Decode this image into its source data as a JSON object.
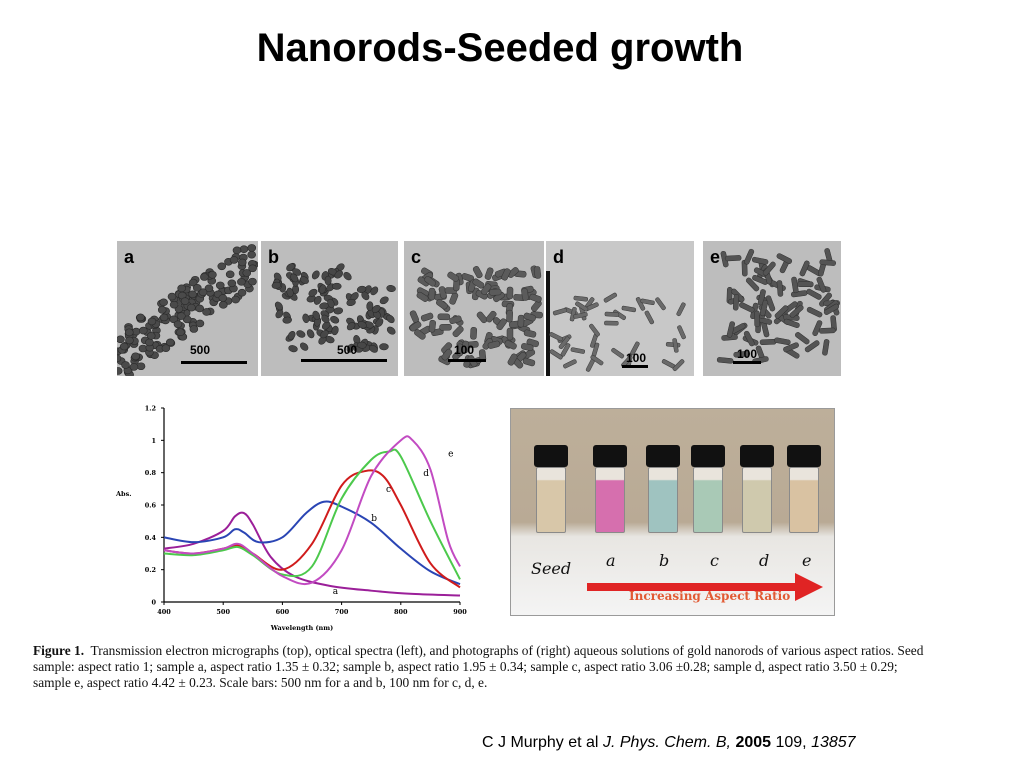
{
  "title": "Nanorods-Seeded growth",
  "tem_panels": [
    {
      "letter": "a",
      "scale": "500"
    },
    {
      "letter": "b",
      "scale": "500"
    },
    {
      "letter": "c",
      "scale": "100"
    },
    {
      "letter": "d",
      "scale": "100"
    },
    {
      "letter": "e",
      "scale": "100"
    }
  ],
  "chart_data": {
    "type": "line",
    "title": "",
    "xlabel": "Wavelength (nm)",
    "ylabel": "Abs.",
    "xlim": [
      400,
      900
    ],
    "ylim": [
      0,
      1.2
    ],
    "x_ticks": [
      "400",
      "500",
      "600",
      "700",
      "800",
      "900"
    ],
    "y_ticks": [
      "0",
      "0.2",
      "0.4",
      "0.6",
      "0.8",
      "1",
      "1.2"
    ],
    "grid": false,
    "series": [
      {
        "name": "a",
        "color": "#9b1f99",
        "x": [
          400,
          450,
          500,
          520,
          535,
          550,
          580,
          620,
          680,
          750,
          820,
          900
        ],
        "y": [
          0.33,
          0.36,
          0.44,
          0.53,
          0.55,
          0.48,
          0.28,
          0.16,
          0.1,
          0.07,
          0.05,
          0.04
        ]
      },
      {
        "name": "b",
        "color": "#2a45b4",
        "x": [
          400,
          450,
          500,
          520,
          535,
          560,
          600,
          640,
          670,
          700,
          750,
          800,
          850,
          900
        ],
        "y": [
          0.4,
          0.37,
          0.4,
          0.45,
          0.43,
          0.37,
          0.4,
          0.55,
          0.62,
          0.59,
          0.49,
          0.33,
          0.19,
          0.11
        ]
      },
      {
        "name": "c",
        "color": "#d01c1c",
        "x": [
          400,
          450,
          500,
          525,
          550,
          600,
          650,
          700,
          740,
          770,
          800,
          850,
          900
        ],
        "y": [
          0.32,
          0.3,
          0.33,
          0.35,
          0.3,
          0.2,
          0.36,
          0.72,
          0.81,
          0.78,
          0.6,
          0.24,
          0.09
        ]
      },
      {
        "name": "d",
        "color": "#4cc94c",
        "x": [
          400,
          450,
          500,
          525,
          550,
          600,
          650,
          700,
          750,
          780,
          800,
          850,
          900
        ],
        "y": [
          0.3,
          0.29,
          0.32,
          0.34,
          0.29,
          0.17,
          0.22,
          0.64,
          0.88,
          0.93,
          0.9,
          0.5,
          0.14
        ]
      },
      {
        "name": "e",
        "color": "#c24bc2",
        "x": [
          400,
          450,
          500,
          525,
          550,
          600,
          650,
          700,
          750,
          800,
          820,
          850,
          880,
          900
        ],
        "y": [
          0.32,
          0.3,
          0.33,
          0.36,
          0.3,
          0.16,
          0.12,
          0.32,
          0.78,
          1.0,
          1.0,
          0.82,
          0.38,
          0.22
        ]
      }
    ]
  },
  "photo": {
    "seed_label": "Seed",
    "vial_labels": [
      "a",
      "b",
      "c",
      "d",
      "e"
    ],
    "vial_colors": [
      "#d8c7a9",
      "#d66fae",
      "#9fc3c0",
      "#a9c9b6",
      "#cfc9ad",
      "#d9c2a2"
    ],
    "arrow_text": "Increasing Aspect Ratio",
    "arrow_color": "#e02424"
  },
  "caption": {
    "label": "Figure 1.",
    "text": "Transmission electron micrographs (top), optical spectra (left), and photographs of (right) aqueous solutions of gold nanorods of various aspect ratios. Seed sample: aspect ratio 1; sample a, aspect ratio 1.35 ± 0.32; sample b, aspect ratio 1.95 ± 0.34; sample c, aspect ratio 3.06 ±0.28; sample d, aspect ratio 3.50 ± 0.29; sample e, aspect ratio 4.42 ± 0.23. Scale bars: 500 nm for a and b, 100 nm for c, d, e."
  },
  "citation": {
    "authors": "C J Murphy et al ",
    "journal": "J. Phys. Chem. B,",
    "year": "2005",
    "volume": " 109,",
    "pages": " 13857"
  }
}
